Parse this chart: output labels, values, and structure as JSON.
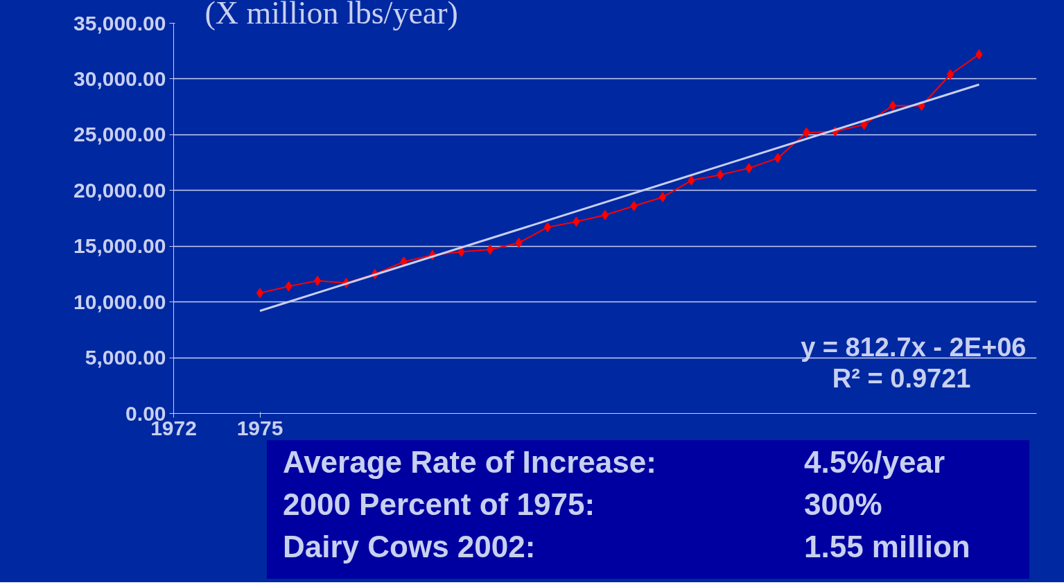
{
  "chart_data": {
    "type": "line",
    "title": "(X million lbs/year)",
    "x": [
      1975,
      1976,
      1977,
      1978,
      1979,
      1980,
      1981,
      1982,
      1983,
      1984,
      1985,
      1986,
      1987,
      1988,
      1989,
      1990,
      1991,
      1992,
      1993,
      1994,
      1995,
      1996,
      1997,
      1998,
      1999,
      2000
    ],
    "series": [
      {
        "color": "#ff0000",
        "marker": "diamond",
        "values": [
          10800,
          11400,
          11900,
          11700,
          12500,
          13600,
          14200,
          14500,
          14700,
          15300,
          16700,
          17200,
          17800,
          18600,
          19400,
          20900,
          21400,
          22000,
          22900,
          25200,
          25300,
          25900,
          27600,
          27600,
          30400,
          32200
        ]
      },
      {
        "type": "line",
        "color": "#c8d0f0",
        "marker": "none",
        "x": [
          1975,
          2000
        ],
        "values": [
          9200,
          29500
        ]
      }
    ],
    "xlim": [
      1972,
      2002
    ],
    "xticks": [
      1972,
      1975
    ],
    "ylim": [
      0,
      35000
    ],
    "yticks": [
      {
        "value": 0,
        "label": "0.00"
      },
      {
        "value": 5000,
        "label": "5,000.00"
      },
      {
        "value": 10000,
        "label": "10,000.00"
      },
      {
        "value": 15000,
        "label": "15,000.00"
      },
      {
        "value": 20000,
        "label": "20,000.00"
      },
      {
        "value": 25000,
        "label": "25,000.00"
      },
      {
        "value": 30000,
        "label": "30,000.00"
      },
      {
        "value": 35000,
        "label": "35,000.00"
      }
    ],
    "grid": "y",
    "annotations": [
      "y = 812.7x - 2E+06",
      "R² = 0.9721",
      "Average Rate of Increase:",
      "4.5%/year",
      "2000 Percent of 1975:",
      "300%",
      "Dairy Cows 2002:",
      "1.55 million"
    ]
  }
}
